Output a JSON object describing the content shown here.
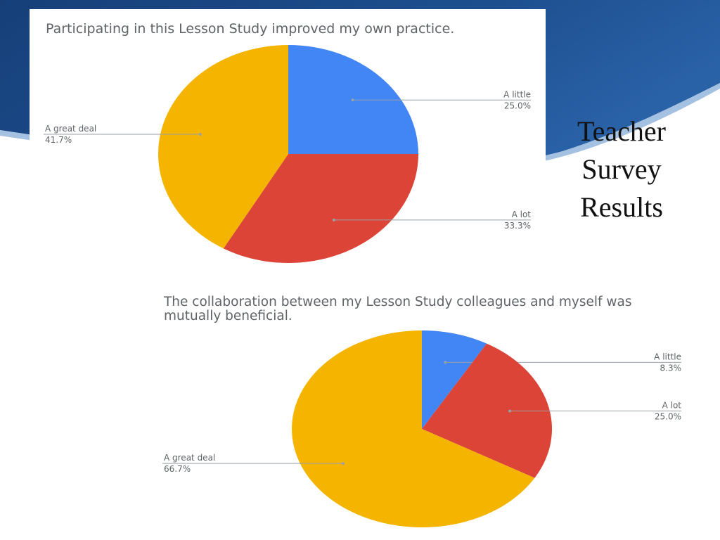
{
  "slide": {
    "title_lines": [
      "Teacher",
      "Survey",
      "Results"
    ]
  },
  "colors": {
    "A little": "#4285f4",
    "A lot": "#db4437",
    "A great deal": "#f4b400",
    "label_text": "#5f6368",
    "leader_line": "#9aa0a6",
    "background_blue": "#1d4f8f"
  },
  "chart_data": [
    {
      "type": "pie",
      "title": "Participating in this Lesson Study improved my own practice.",
      "slices": [
        {
          "label": "A little",
          "value": 25.0,
          "display": "25.0%"
        },
        {
          "label": "A lot",
          "value": 33.3,
          "display": "33.3%"
        },
        {
          "label": "A great deal",
          "value": 41.7,
          "display": "41.7%"
        }
      ]
    },
    {
      "type": "pie",
      "title": "The collaboration between my Lesson Study colleagues and myself was mutually beneficial.",
      "slices": [
        {
          "label": "A little",
          "value": 8.3,
          "display": "8.3%"
        },
        {
          "label": "A lot",
          "value": 25.0,
          "display": "25.0%"
        },
        {
          "label": "A great deal",
          "value": 66.7,
          "display": "66.7%"
        }
      ]
    }
  ]
}
